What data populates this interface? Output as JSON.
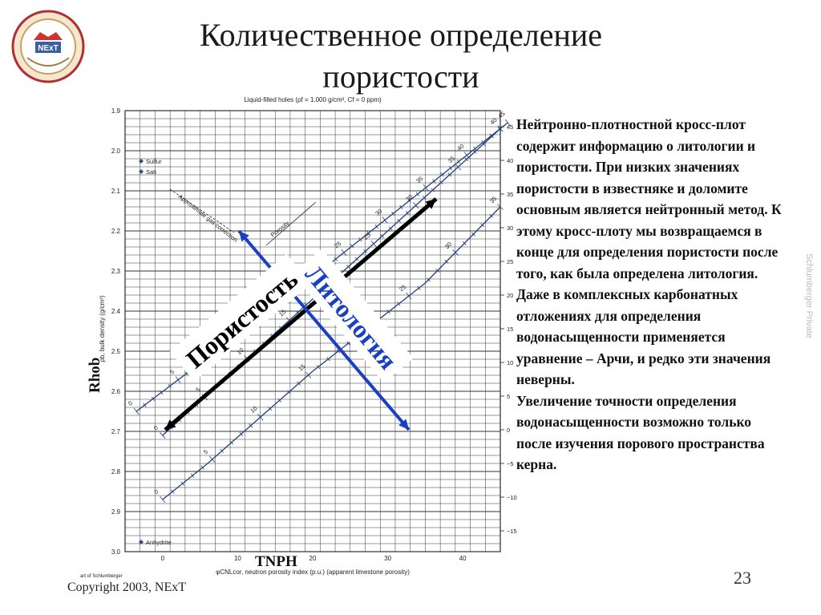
{
  "slide": {
    "title": "Количественное определение пористости",
    "page_number": "23",
    "copyright": "Copyright 2003, NExT",
    "tiny_credit": "art of Schlumberger",
    "side_label": "Schlumberger Private",
    "logo_text": "NExT",
    "rhob_label": "Rhob",
    "tnph_label": "TNPH"
  },
  "body": {
    "paragraphs": [
      "Нейтронно-плотностной кросс-плот содержит информацию о литологии и пористости. При низких значениях пористости в известняке и доломите основным является нейтронный метод. К этому кросс-плоту мы возвращаемся в конце для определения пористости после того, как была определена литология.",
      "Даже в комплексных карбонатных отложениях для определения водонасыщенности применяется уравнение – Арчи, и редко эти значения неверны.",
      "Увеличение точности определения водонасыщенности возможно только после изучения порового пространства керна."
    ]
  },
  "chart_data": {
    "type": "line",
    "title": "Liquid-filled holes (ρf = 1.000 g/cm³, Cf = 0 ppm)",
    "xlabel": "φCNLcor, neutron porosity index (p.u.) (apparent limestone porosity)",
    "ylabel": "ρb, bulk density (g/cm³)",
    "xlim": [
      -5,
      45
    ],
    "ylim": [
      3.0,
      1.9
    ],
    "x_ticks": [
      "0",
      "10",
      "20",
      "30",
      "40"
    ],
    "y_ticks": [
      "1.9",
      "2.0",
      "2.1",
      "2.2",
      "2.3",
      "2.4",
      "2.5",
      "2.6",
      "2.7",
      "2.8",
      "2.9",
      "3.0"
    ],
    "right_ticks": [
      "45",
      "40",
      "35",
      "30",
      "25",
      "20",
      "15",
      "10",
      "5",
      "0",
      "−5",
      "−10",
      "−15"
    ],
    "grid": true,
    "legend": {
      "entries": [
        "Sulfur",
        "Salt",
        "Anhydrite"
      ]
    },
    "series": [
      {
        "points": [
          [
            -3.5,
            2.65
          ],
          [
            16,
            2.375
          ],
          [
            46,
            1.93
          ]
        ],
        "porosity_labels": [
          "0",
          "5",
          "10",
          "15",
          "20",
          "25",
          "30",
          "35",
          "40",
          "45"
        ]
      },
      {
        "points": [
          [
            0,
            2.71
          ],
          [
            10,
            2.54
          ],
          [
            20,
            2.37
          ],
          [
            30,
            2.2
          ],
          [
            40,
            2.03
          ],
          [
            45,
            1.945
          ]
        ],
        "porosity_labels": [
          "0",
          "5",
          "10",
          "15",
          "20",
          "25",
          "30",
          "35",
          "40"
        ]
      },
      {
        "points": [
          [
            0,
            2.87
          ],
          [
            6,
            2.78
          ],
          [
            20,
            2.55
          ],
          [
            35,
            2.33
          ],
          [
            45,
            2.14
          ]
        ],
        "porosity_labels": [
          "0",
          "5",
          "10",
          "15",
          "20",
          "25",
          "30",
          "35"
        ]
      }
    ],
    "annotations": [
      "Approximate gas correction",
      "Porosity"
    ],
    "overlay_labels": {
      "porosity": "Пористость",
      "lithology": "Литология"
    },
    "colors": {
      "porosity_arrow": "#000000",
      "lithology_arrow": "#1a3fc4",
      "grid": "#333333",
      "curve": "#1f3f7a"
    }
  }
}
